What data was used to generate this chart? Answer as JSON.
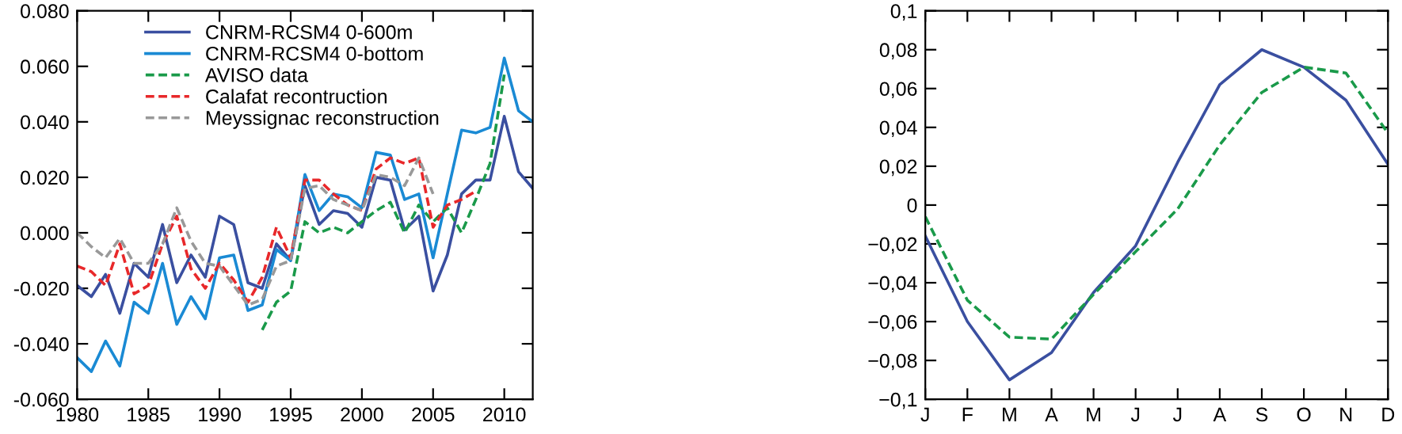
{
  "chart_data": [
    {
      "type": "line",
      "x": [
        1980,
        1981,
        1982,
        1983,
        1984,
        1985,
        1986,
        1987,
        1988,
        1989,
        1990,
        1991,
        1992,
        1993,
        1994,
        1995,
        1996,
        1997,
        1998,
        1999,
        2000,
        2001,
        2002,
        2003,
        2004,
        2005,
        2006,
        2007,
        2008,
        2009,
        2010,
        2011,
        2012
      ],
      "series": [
        {
          "name": "CNRM-RCSM4 0-600m",
          "color": "#3a4fa0",
          "line_style": "solid",
          "values": [
            -0.019,
            -0.023,
            -0.015,
            -0.029,
            -0.011,
            -0.016,
            0.003,
            -0.018,
            -0.008,
            -0.016,
            0.006,
            0.003,
            -0.018,
            -0.02,
            -0.004,
            -0.01,
            0.017,
            0.003,
            0.008,
            0.007,
            0.002,
            0.02,
            0.019,
            0.001,
            0.006,
            -0.021,
            -0.008,
            0.014,
            0.019,
            0.019,
            0.042,
            0.022,
            0.016
          ]
        },
        {
          "name": "CNRM-RCSM4 0-bottom",
          "color": "#1a8ad4",
          "line_style": "solid",
          "values": [
            -0.045,
            -0.05,
            -0.039,
            -0.048,
            -0.025,
            -0.029,
            -0.011,
            -0.033,
            -0.023,
            -0.031,
            -0.009,
            -0.008,
            -0.028,
            -0.026,
            -0.006,
            -0.01,
            0.021,
            0.008,
            0.014,
            0.013,
            0.009,
            0.029,
            0.028,
            0.012,
            0.014,
            -0.009,
            0.014,
            0.037,
            0.036,
            0.038,
            0.063,
            0.044,
            0.04
          ]
        },
        {
          "name": "AVISO data",
          "color": "#1a9a4a",
          "line_style": "dashed",
          "values": [
            null,
            null,
            null,
            null,
            null,
            null,
            null,
            null,
            null,
            null,
            null,
            null,
            null,
            -0.035,
            -0.025,
            -0.021,
            0.004,
            0.0,
            0.002,
            0.0,
            0.004,
            0.008,
            0.011,
            0.0,
            0.01,
            0.004,
            0.009,
            0.0,
            0.012,
            0.025,
            0.057,
            null,
            null
          ]
        },
        {
          "name": "Calafat recontruction",
          "color": "#e8282a",
          "line_style": "dashed",
          "values": [
            -0.012,
            -0.014,
            -0.019,
            -0.004,
            -0.022,
            -0.019,
            -0.004,
            0.006,
            -0.013,
            -0.02,
            -0.011,
            -0.017,
            -0.025,
            -0.016,
            0.002,
            -0.009,
            0.019,
            0.019,
            0.014,
            0.01,
            0.008,
            0.023,
            0.027,
            0.025,
            0.027,
            0.002,
            0.01,
            0.012,
            0.015,
            null,
            null,
            null,
            null
          ]
        },
        {
          "name": "Meyssignac reconstruction",
          "color": "#999999",
          "line_style": "dashed",
          "values": [
            0.0,
            -0.005,
            -0.009,
            -0.002,
            -0.011,
            -0.011,
            -0.004,
            0.009,
            -0.003,
            -0.011,
            -0.012,
            -0.019,
            -0.026,
            -0.024,
            -0.012,
            -0.01,
            0.016,
            0.017,
            0.012,
            0.01,
            0.008,
            0.021,
            0.02,
            0.017,
            0.027,
            0.014,
            null,
            null,
            null,
            null,
            null,
            null,
            null
          ]
        }
      ],
      "xlim": [
        1980,
        2012
      ],
      "xticks": [
        1980,
        1985,
        1990,
        1995,
        2000,
        2005,
        2010
      ],
      "ylim": [
        -0.06,
        0.08
      ],
      "yticks": [
        {
          "value": -0.06,
          "label": "-0.060"
        },
        {
          "value": -0.04,
          "label": "-0.040"
        },
        {
          "value": -0.02,
          "label": "-0.020"
        },
        {
          "value": 0,
          "label": "0.000"
        },
        {
          "value": 0.02,
          "label": "0.020"
        },
        {
          "value": 0.04,
          "label": "0.040"
        },
        {
          "value": 0.06,
          "label": "0.060"
        },
        {
          "value": 0.08,
          "label": "0.080"
        }
      ],
      "legend": "top left",
      "grid": false
    },
    {
      "type": "line",
      "categories": [
        "J",
        "F",
        "M",
        "A",
        "M",
        "J",
        "J",
        "A",
        "S",
        "O",
        "N",
        "D"
      ],
      "series": [
        {
          "color": "#3a4fa0",
          "line_style": "solid",
          "values": [
            -0.016,
            -0.06,
            -0.09,
            -0.076,
            -0.045,
            -0.021,
            0.022,
            0.062,
            0.08,
            0.071,
            0.054,
            0.021
          ]
        },
        {
          "color": "#1a9a4a",
          "line_style": "dashed",
          "values": [
            -0.006,
            -0.049,
            -0.068,
            -0.069,
            -0.046,
            -0.024,
            -0.002,
            0.031,
            0.058,
            0.071,
            0.068,
            0.037
          ]
        }
      ],
      "ylim": [
        -0.1,
        0.1
      ],
      "yticks": [
        {
          "value": -0.1,
          "label": "−0,1"
        },
        {
          "value": -0.08,
          "label": "−0,08"
        },
        {
          "value": -0.06,
          "label": "−0,06"
        },
        {
          "value": -0.04,
          "label": "−0,04"
        },
        {
          "value": -0.02,
          "label": "−0,02"
        },
        {
          "value": 0,
          "label": "0"
        },
        {
          "value": 0.02,
          "label": "0,02"
        },
        {
          "value": 0.04,
          "label": "0,04"
        },
        {
          "value": 0.06,
          "label": "0,06"
        },
        {
          "value": 0.08,
          "label": "0,08"
        },
        {
          "value": 0.1,
          "label": "0,1"
        }
      ],
      "legend": false,
      "grid": false
    }
  ]
}
